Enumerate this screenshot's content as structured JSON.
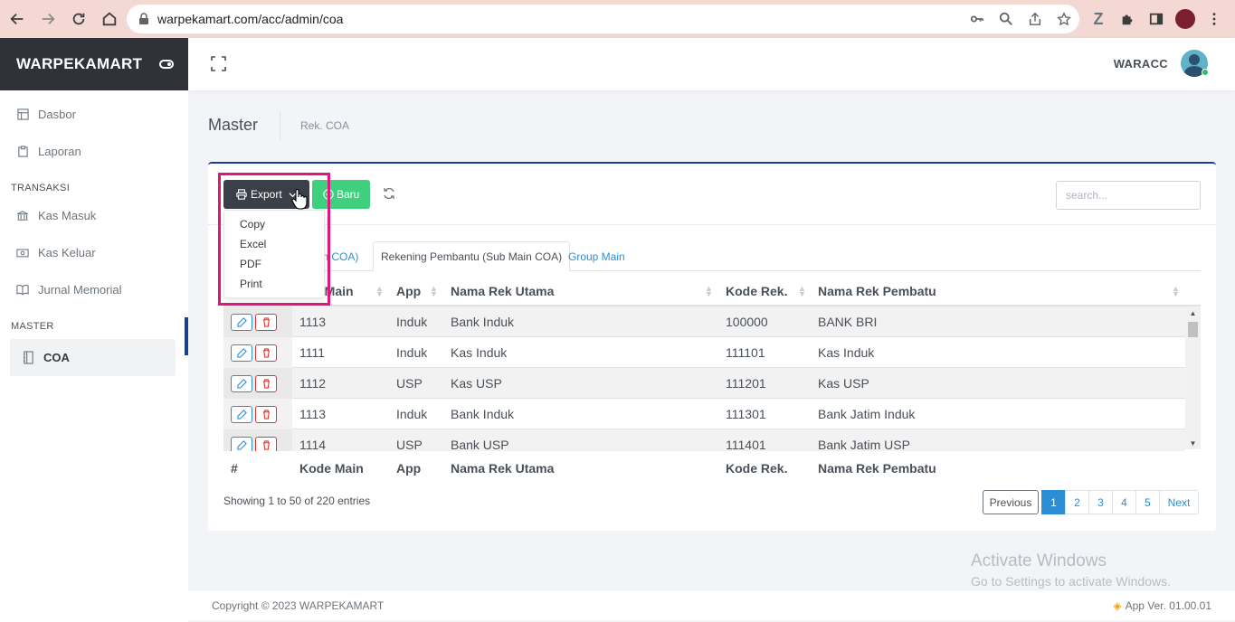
{
  "browser": {
    "url": "warpekamart.com/acc/admin/coa"
  },
  "sidebar": {
    "brand": "WARPEKAMART",
    "items_top": [
      {
        "label": "Dasbor",
        "icon": "grid-icon"
      },
      {
        "label": "Laporan",
        "icon": "clipboard-icon"
      }
    ],
    "section_transaksi": "TRANSAKSI",
    "items_transaksi": [
      {
        "label": "Kas Masuk",
        "icon": "bank-icon"
      },
      {
        "label": "Kas Keluar",
        "icon": "cash-icon"
      },
      {
        "label": "Jurnal Memorial",
        "icon": "book-icon"
      }
    ],
    "section_master": "MASTER",
    "items_master": [
      {
        "label": "COA",
        "icon": "notebook-icon",
        "active": true
      }
    ]
  },
  "topbar": {
    "user": "WARACC"
  },
  "breadcrumb": {
    "title": "Master",
    "item": "Rek. COA"
  },
  "toolbar": {
    "export_label": "Export",
    "baru_label": "Baru",
    "search_placeholder": "search..."
  },
  "dropdown": {
    "items": [
      "Copy",
      "Excel",
      "PDF",
      "Print"
    ]
  },
  "tabs": [
    {
      "label": "ain COA)",
      "active": false
    },
    {
      "label": "Rekening Pembantu (Sub Main COA)",
      "active": true
    },
    {
      "label": "Group Main",
      "active": false
    }
  ],
  "table": {
    "header": [
      "e Main",
      "App",
      "Nama Rek Utama",
      "Kode Rek.",
      "Nama Rek Pembatu"
    ],
    "footer": [
      "#",
      "Kode Main",
      "App",
      "Nama Rek Utama",
      "Kode Rek.",
      "Nama Rek Pembatu"
    ],
    "rows": [
      [
        "1113",
        "Induk",
        "Bank Induk",
        "100000",
        "BANK BRI"
      ],
      [
        "1111",
        "Induk",
        "Kas Induk",
        "111101",
        "Kas Induk"
      ],
      [
        "1112",
        "USP",
        "Kas USP",
        "111201",
        "Kas USP"
      ],
      [
        "1113",
        "Induk",
        "Bank Induk",
        "111301",
        "Bank Jatim Induk"
      ],
      [
        "1114",
        "USP",
        "Bank USP",
        "111401",
        "Bank Jatim USP"
      ]
    ]
  },
  "pagination": {
    "info": "Showing 1 to 50 of 220 entries",
    "previous": "Previous",
    "pages": [
      "1",
      "2",
      "3",
      "4",
      "5"
    ],
    "current": "1",
    "next": "Next"
  },
  "watermark": {
    "line1": "Activate Windows",
    "line2": "Go to Settings to activate Windows."
  },
  "footer": {
    "copyright": "Copyright © 2023 WARPEKAMART",
    "version": "App Ver. 01.00.01"
  },
  "colors": {
    "brand_dark": "#2f3339",
    "accent_blue": "#1a3e8c",
    "success_green": "#3ed07e",
    "link_blue": "#2c8fd6",
    "highlight_pink": "#e3147e"
  }
}
